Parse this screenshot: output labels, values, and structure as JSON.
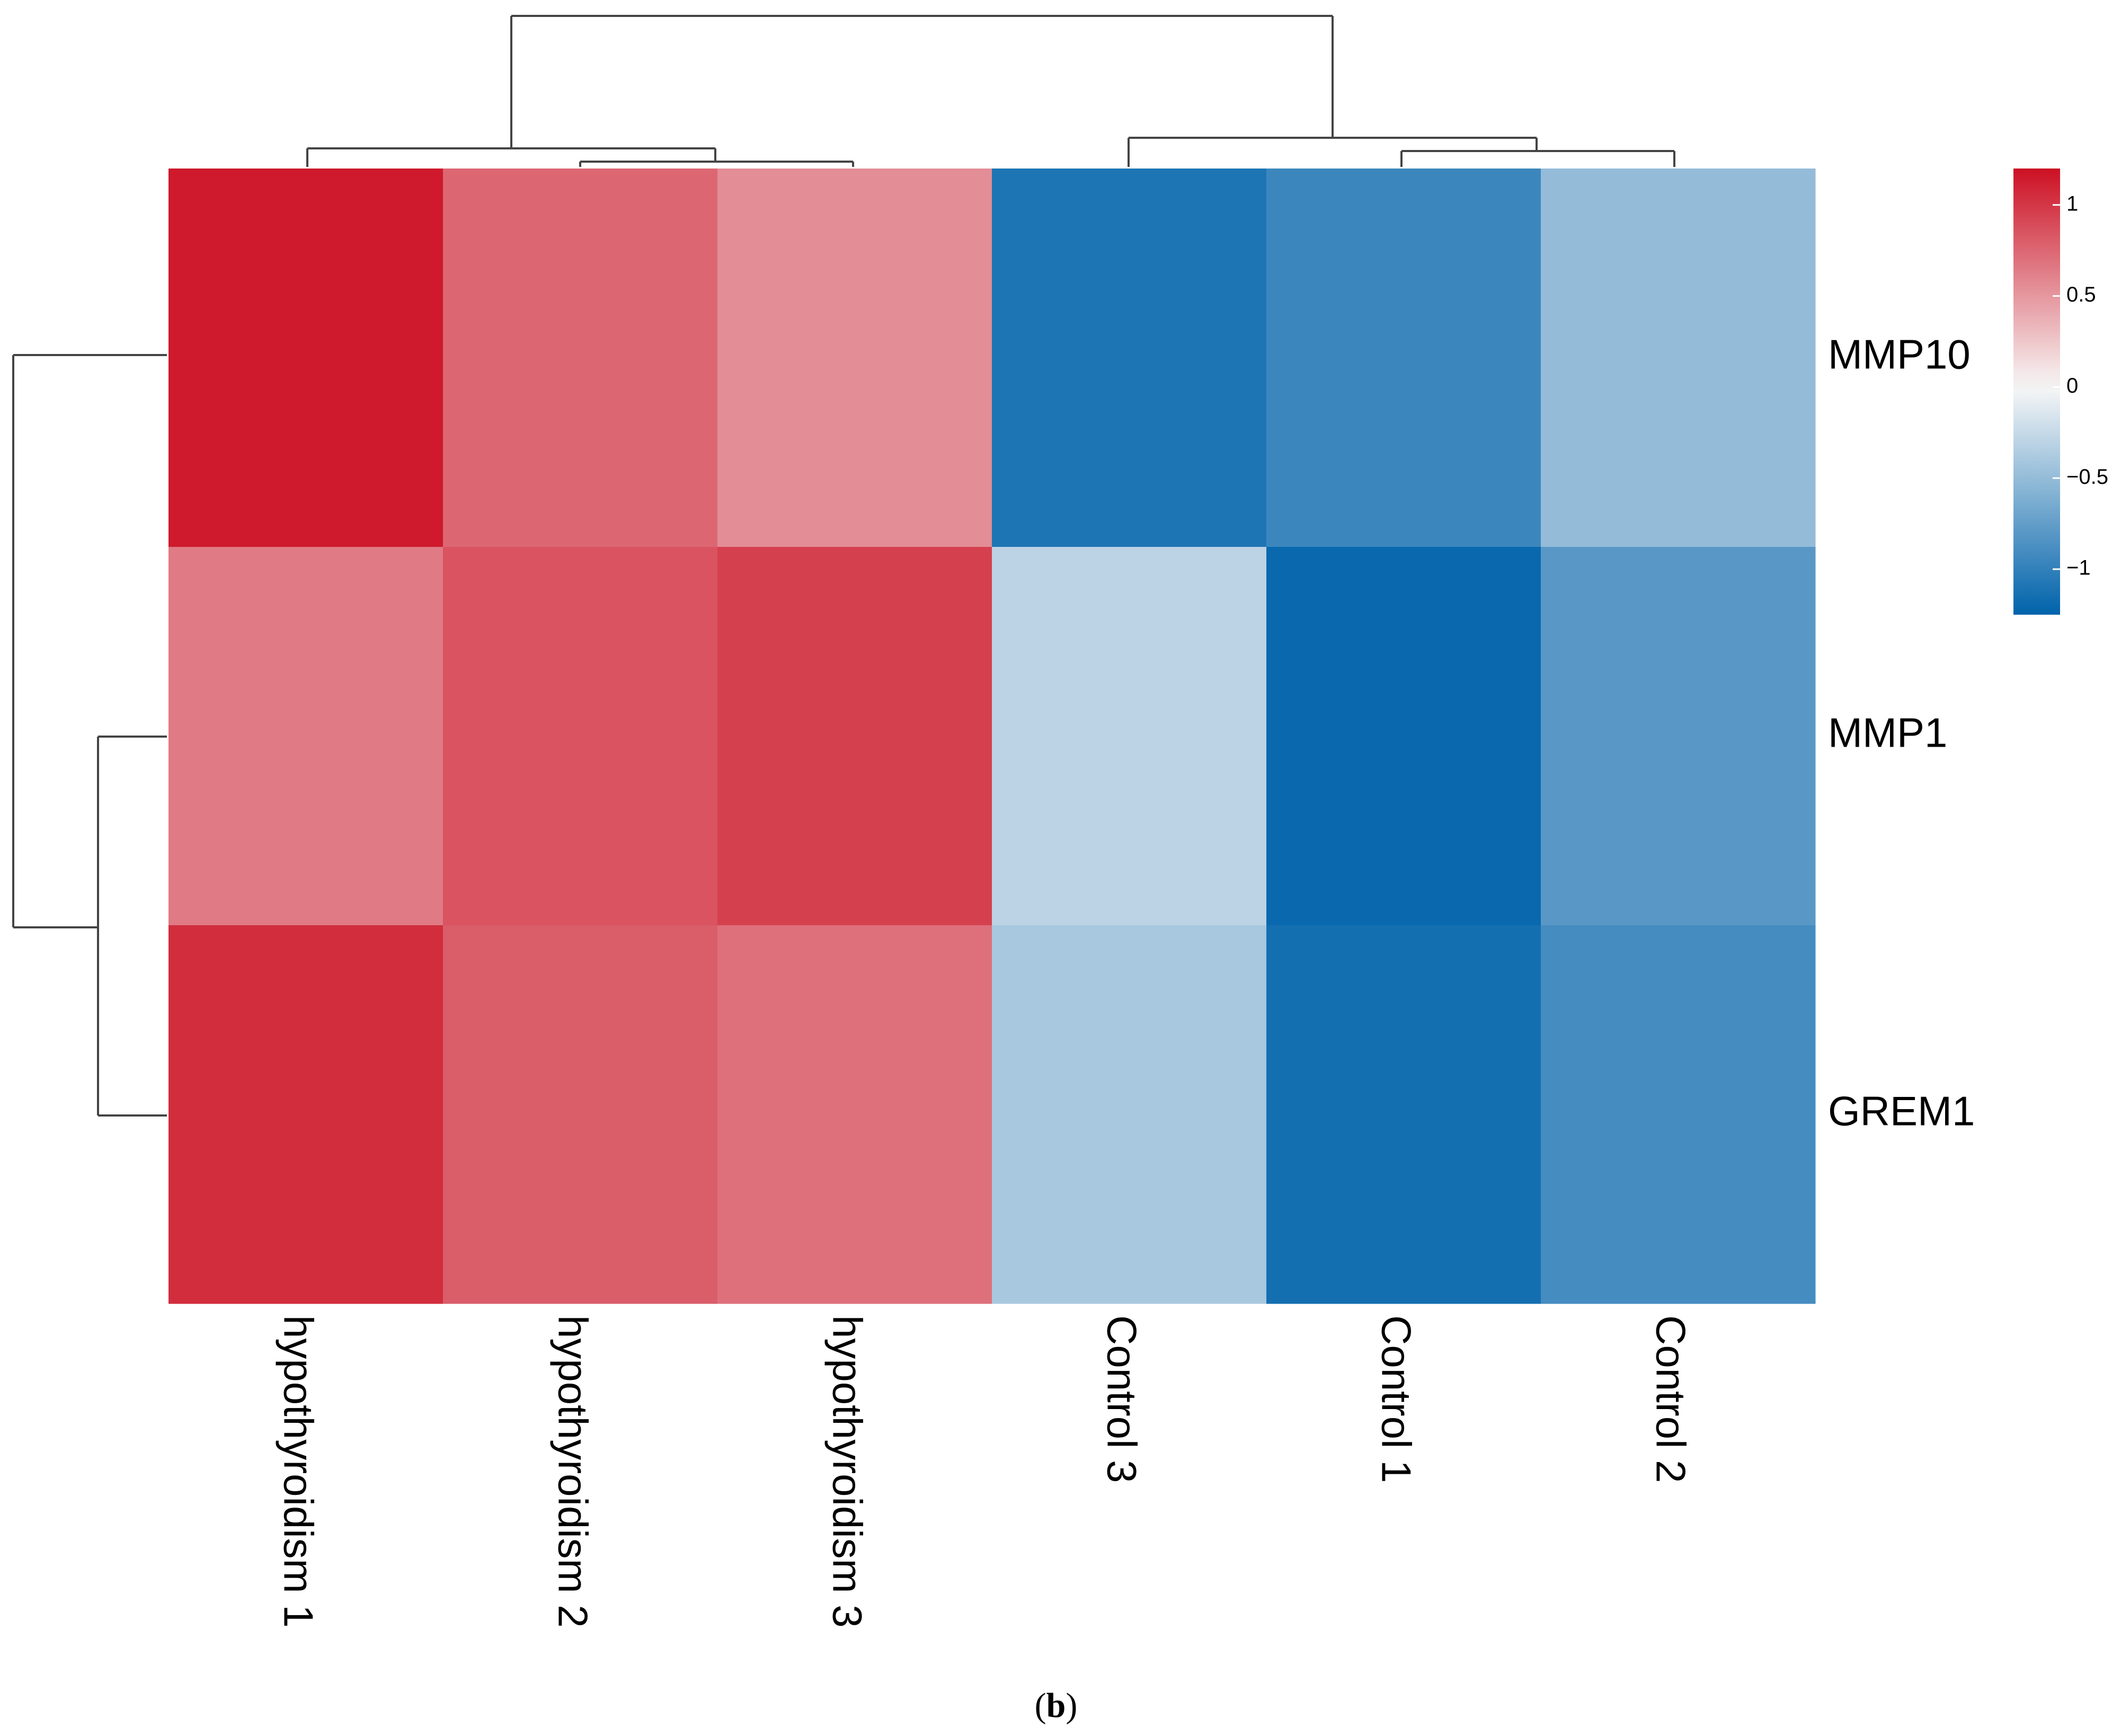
{
  "chart_data": {
    "type": "heatmap",
    "title": "",
    "columns": [
      "hypothyroidism 1",
      "hypothyroidism 2",
      "hypothyroidism 3",
      "Control 3",
      "Control 1",
      "Control 2"
    ],
    "rows": [
      "MMP10",
      "MMP1",
      "GREM1"
    ],
    "values": [
      [
        1.15,
        0.75,
        0.55,
        -1.1,
        -0.95,
        -0.5
      ],
      [
        0.65,
        0.85,
        0.95,
        -0.3,
        -1.2,
        -0.8
      ],
      [
        1.05,
        0.8,
        0.7,
        -0.4,
        -1.15,
        -0.9
      ]
    ],
    "colorbar": {
      "ticks": [
        1,
        0.5,
        0,
        -0.5,
        -1
      ],
      "tick_labels": [
        "1",
        "0.5",
        "0",
        "−0.5",
        "−1"
      ],
      "range": [
        -1.25,
        1.2
      ],
      "colors": {
        "low": "#0063ab",
        "mid": "#f7f7f7",
        "high": "#cc1023"
      }
    },
    "column_dendrogram": "((hypothyroidism 1,(hypothyroidism 2,hypothyroidism 3)),(Control 3,(Control 1,Control 2)))",
    "row_dendrogram": "(MMP10,(MMP1,GREM1))"
  },
  "caption": {
    "paren_open": "(",
    "letter": "b",
    "paren_close": ")"
  }
}
